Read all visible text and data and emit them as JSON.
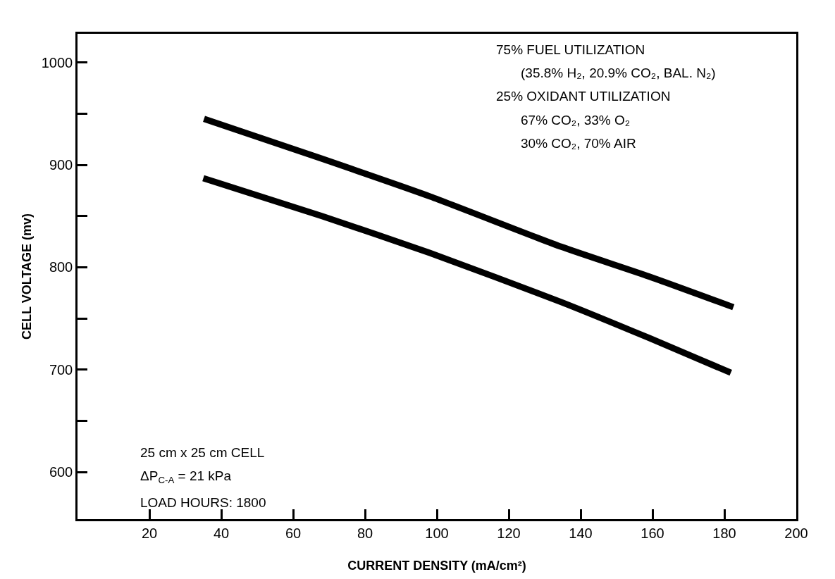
{
  "chart_data": {
    "type": "line",
    "xlabel": "CURRENT DENSITY (mA/cm²)",
    "ylabel": "CELL VOLTAGE (mv)",
    "xlim": [
      0,
      200
    ],
    "xticks": [
      20,
      40,
      60,
      80,
      100,
      120,
      140,
      160,
      180,
      200
    ],
    "ylim": [
      554,
      1028
    ],
    "yticks": [
      {
        "value": 600,
        "label": "600"
      },
      {
        "value": 650,
        "label": null
      },
      {
        "value": 700,
        "label": "700"
      },
      {
        "value": 750,
        "label": null
      },
      {
        "value": 800,
        "label": "800"
      },
      {
        "value": 850,
        "label": null
      },
      {
        "value": 900,
        "label": "900"
      },
      {
        "value": 950,
        "label": null
      },
      {
        "value": 1000,
        "label": "1000"
      }
    ],
    "marker": "none",
    "line_style": "solid",
    "series": [
      {
        "color": "#000000",
        "x": [
          35.2,
          68,
          98.2,
          134.6,
          159,
          182.5
        ],
        "values": [
          945,
          906,
          869,
          820,
          791,
          761
        ]
      },
      {
        "color": "#000000",
        "x": [
          35,
          68,
          98,
          134.6,
          159,
          181.8
        ],
        "values": [
          887,
          850,
          814,
          766,
          731,
          697
        ]
      }
    ],
    "annotations": [
      "75% FUEL UTILIZATION",
      "(35.8% H₂, 20.9% CO₂, BAL. N₂)",
      "25% OXIDANT UTILIZATION",
      "67% CO₂, 33% O₂",
      "30% CO₂, 70% AIR",
      "25 cm x 25 cm CELL",
      "ΔP$_{C-A}$ = 21 kPa",
      "LOAD HOURS: 1800"
    ]
  }
}
